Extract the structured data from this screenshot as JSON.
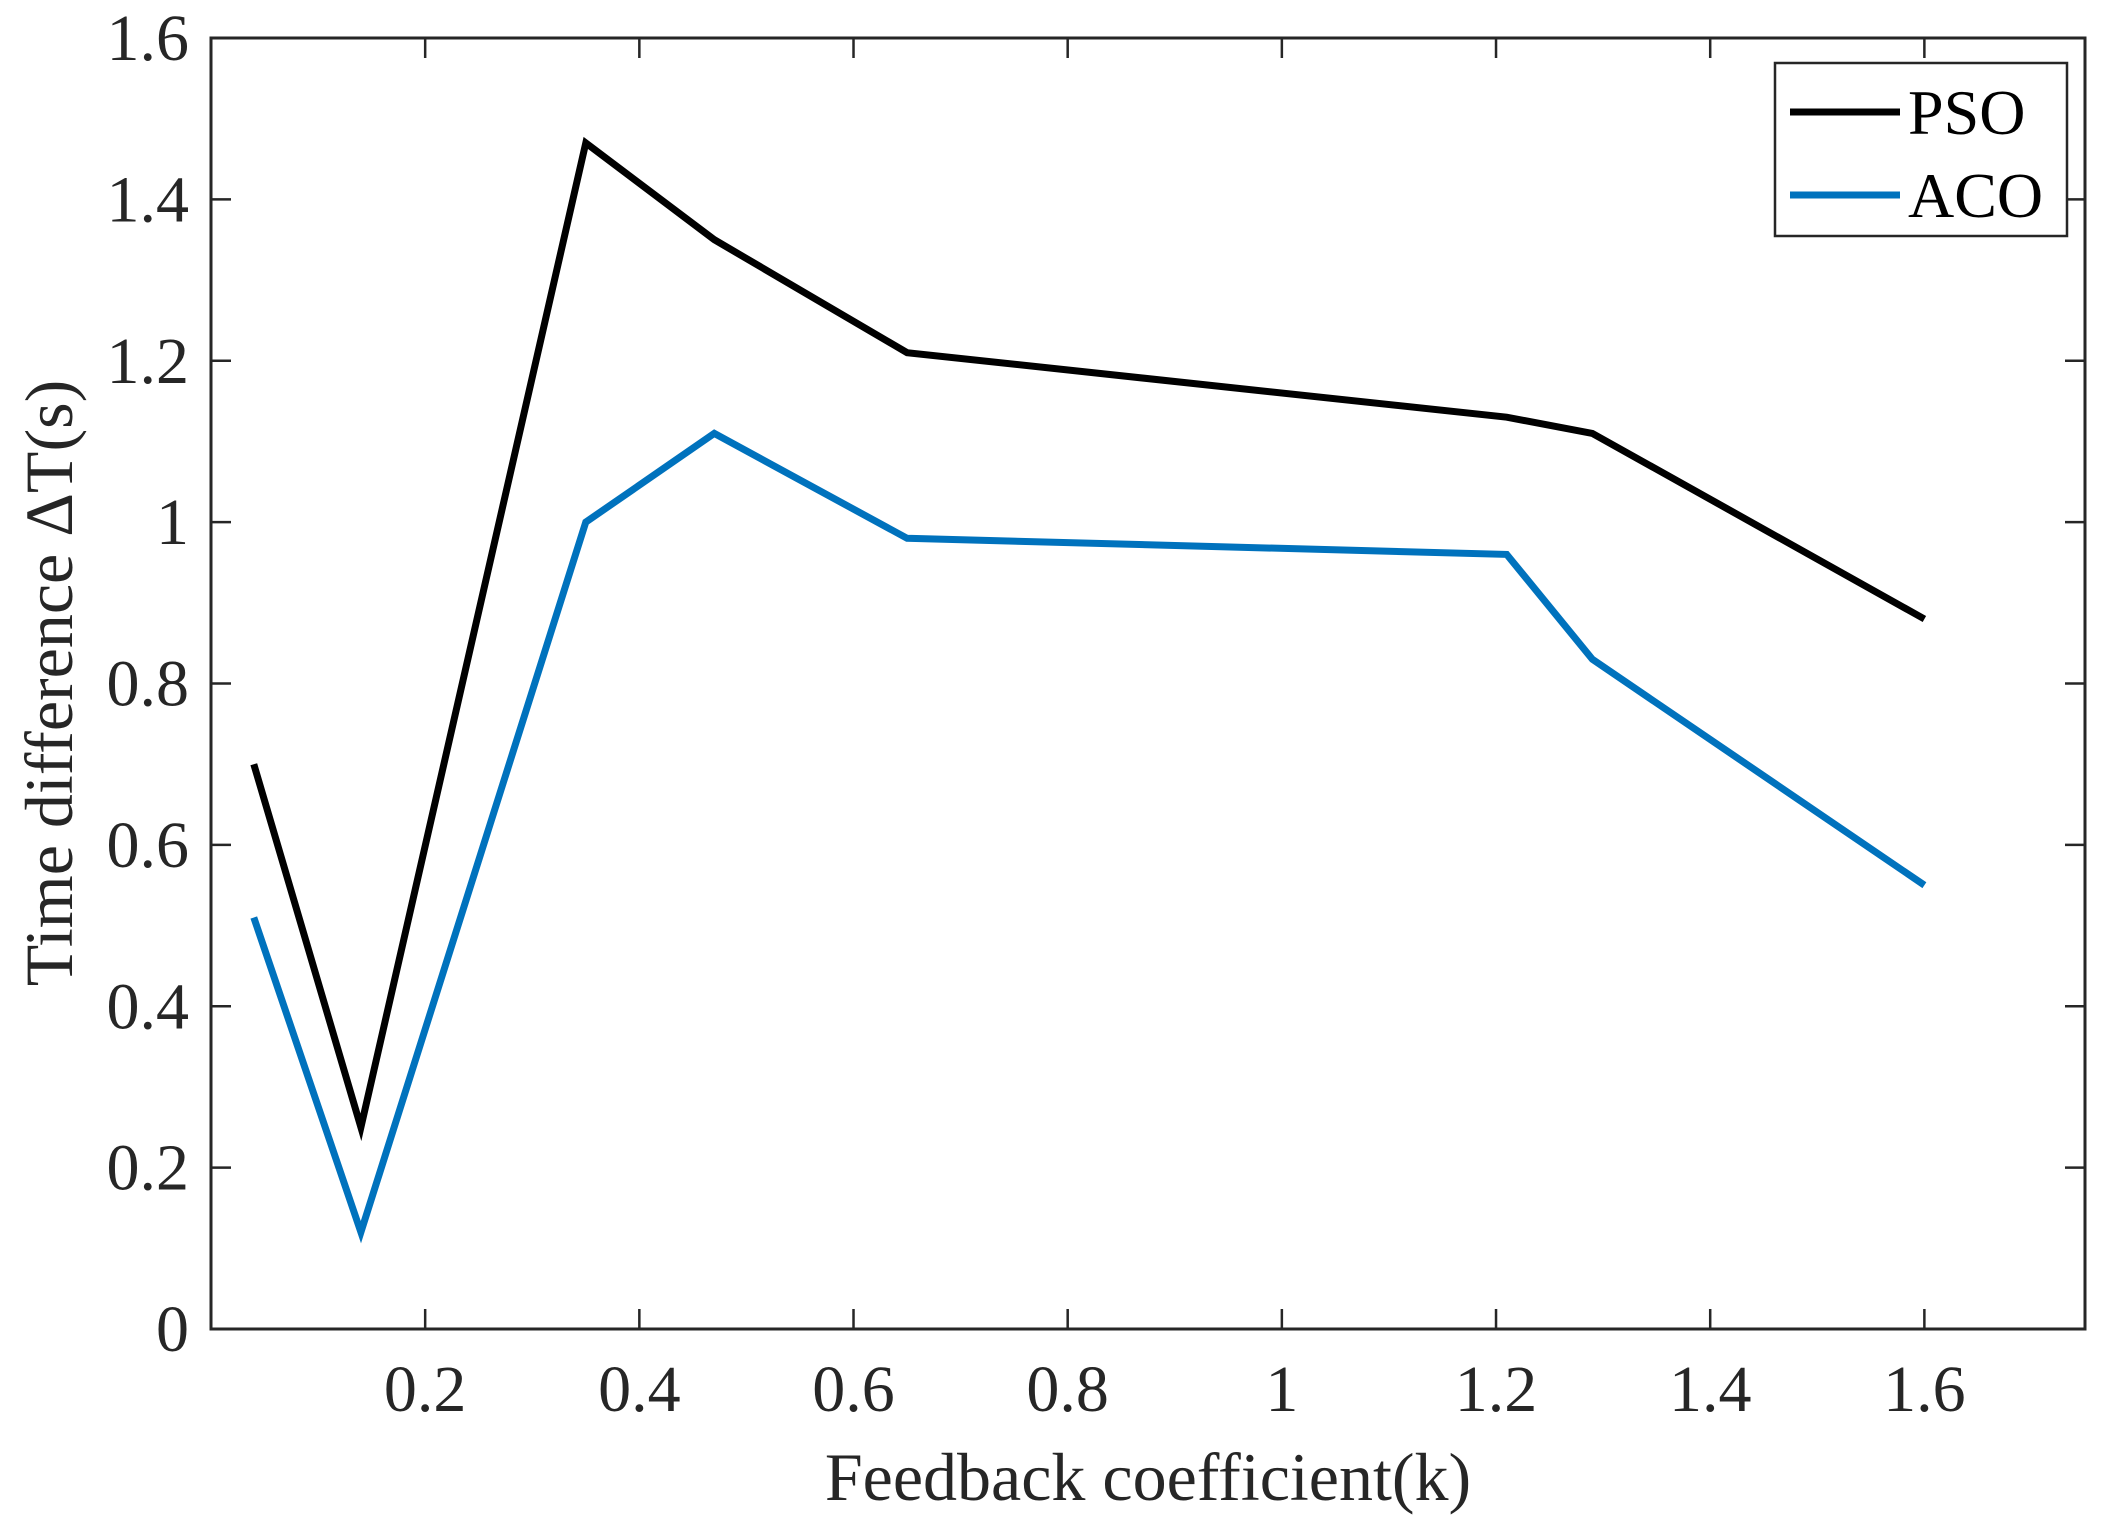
{
  "chart_data": {
    "type": "line",
    "title": "",
    "xlabel": "Feedback coefficient(k)",
    "ylabel": "Time difference ΔT(s)",
    "xlim": [
      0,
      1.75
    ],
    "ylim": [
      0,
      1.6
    ],
    "xticks": [
      0.2,
      0.4,
      0.6,
      0.8,
      1,
      1.2,
      1.4,
      1.6
    ],
    "xtick_labels": [
      "0.2",
      "0.4",
      "0.6",
      "0.8",
      "1",
      "1.2",
      "1.4",
      "1.6"
    ],
    "yticks": [
      0,
      0.2,
      0.4,
      0.6,
      0.8,
      1,
      1.2,
      1.4,
      1.6
    ],
    "ytick_labels": [
      "0",
      "0.2",
      "0.4",
      "0.6",
      "0.8",
      "1",
      "1.2",
      "1.4",
      "1.6"
    ],
    "grid": false,
    "legend_position": "top-right",
    "series": [
      {
        "name": "PSO",
        "color": "#000000",
        "x": [
          0.04,
          0.14,
          0.35,
          0.47,
          0.65,
          1.21,
          1.29,
          1.6
        ],
        "y": [
          0.7,
          0.25,
          1.47,
          1.35,
          1.21,
          1.13,
          1.11,
          0.88
        ]
      },
      {
        "name": "ACO",
        "color": "#0072BD",
        "x": [
          0.04,
          0.14,
          0.35,
          0.47,
          0.65,
          1.21,
          1.29,
          1.6
        ],
        "y": [
          0.51,
          0.12,
          1.0,
          1.11,
          0.98,
          0.96,
          0.83,
          0.55
        ]
      }
    ]
  }
}
